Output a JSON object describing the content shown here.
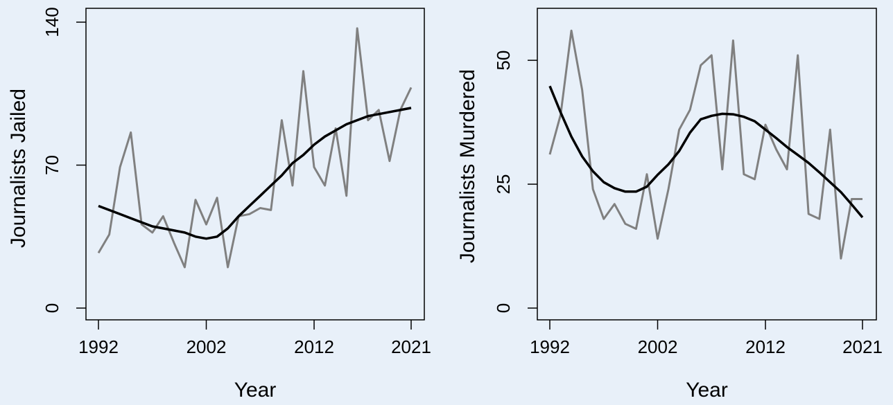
{
  "chart_data": [
    {
      "type": "line",
      "xlabel": "Year",
      "ylabel": "Journalists Jailed",
      "xlim": [
        1992,
        2021
      ],
      "ylim": [
        0,
        140
      ],
      "xticks": [
        "1992",
        "2002",
        "2012",
        "2021"
      ],
      "yticks": [
        "0",
        "70",
        "140"
      ],
      "grid": false,
      "series": [
        {
          "x": [
            1992,
            1993,
            1994,
            1995,
            1996,
            1997,
            1998,
            1999,
            2000,
            2001,
            2002,
            2003,
            2004,
            2005,
            2006,
            2007,
            2008,
            2009,
            2010,
            2011,
            2012,
            2013,
            2014,
            2015,
            2016,
            2017,
            2018,
            2019,
            2020,
            2021
          ],
          "values": [
            27,
            36,
            69,
            86,
            41,
            37,
            45,
            32,
            20,
            53,
            41,
            54,
            20,
            45,
            46,
            49,
            48,
            92,
            60,
            116,
            69,
            60,
            88,
            55,
            137,
            92,
            97,
            72,
            97,
            108
          ],
          "color": "#808080"
        },
        {
          "x": [
            1992,
            1993,
            1994,
            1995,
            1996,
            1997,
            1998,
            1999,
            2000,
            2001,
            2002,
            2003,
            2004,
            2005,
            2006,
            2007,
            2008,
            2009,
            2010,
            2011,
            2012,
            2013,
            2014,
            2015,
            2016,
            2017,
            2018,
            2019,
            2020,
            2021
          ],
          "values": [
            50,
            48,
            46,
            44,
            42,
            40,
            39,
            38,
            37,
            35,
            34,
            35,
            39,
            45,
            50,
            55,
            60,
            65,
            71,
            75,
            80,
            84,
            87,
            90,
            92,
            94,
            95,
            96,
            97,
            98
          ],
          "color": "#000000"
        }
      ]
    },
    {
      "type": "line",
      "xlabel": "Year",
      "ylabel": "Journalists Murdered",
      "xlim": [
        1992,
        2021
      ],
      "ylim": [
        0,
        57
      ],
      "xticks": [
        "1992",
        "2002",
        "2012",
        "2021"
      ],
      "yticks": [
        "0",
        "25",
        "50"
      ],
      "grid": false,
      "series": [
        {
          "x": [
            1992,
            1993,
            1994,
            1995,
            1996,
            1997,
            1998,
            1999,
            2000,
            2001,
            2002,
            2003,
            2004,
            2005,
            2006,
            2007,
            2008,
            2009,
            2010,
            2011,
            2012,
            2013,
            2014,
            2015,
            2016,
            2017,
            2018,
            2019,
            2020,
            2021
          ],
          "values": [
            31,
            39,
            56,
            44,
            24,
            18,
            21,
            17,
            16,
            27,
            14,
            24,
            36,
            40,
            49,
            51,
            28,
            54,
            27,
            26,
            37,
            32,
            28,
            51,
            19,
            18,
            36,
            10,
            22,
            22
          ],
          "color": "#808080"
        },
        {
          "x": [
            1992,
            1993,
            1994,
            1995,
            1996,
            1997,
            1998,
            1999,
            2000,
            2001,
            2002,
            2003,
            2004,
            2005,
            2006,
            2007,
            2008,
            2009,
            2010,
            2011,
            2012,
            2013,
            2014,
            2015,
            2016,
            2017,
            2018,
            2019,
            2020,
            2021
          ],
          "values": [
            44.8,
            39.5,
            34.6,
            30.6,
            27.6,
            25.4,
            24.2,
            23.5,
            23.5,
            24.5,
            26.9,
            29.0,
            31.7,
            35.4,
            38.1,
            38.8,
            39.2,
            39.1,
            38.6,
            37.7,
            36.0,
            34.3,
            32.5,
            30.9,
            29.3,
            27.4,
            25.4,
            23.4,
            20.9,
            18.3
          ],
          "color": "#000000"
        }
      ]
    }
  ]
}
